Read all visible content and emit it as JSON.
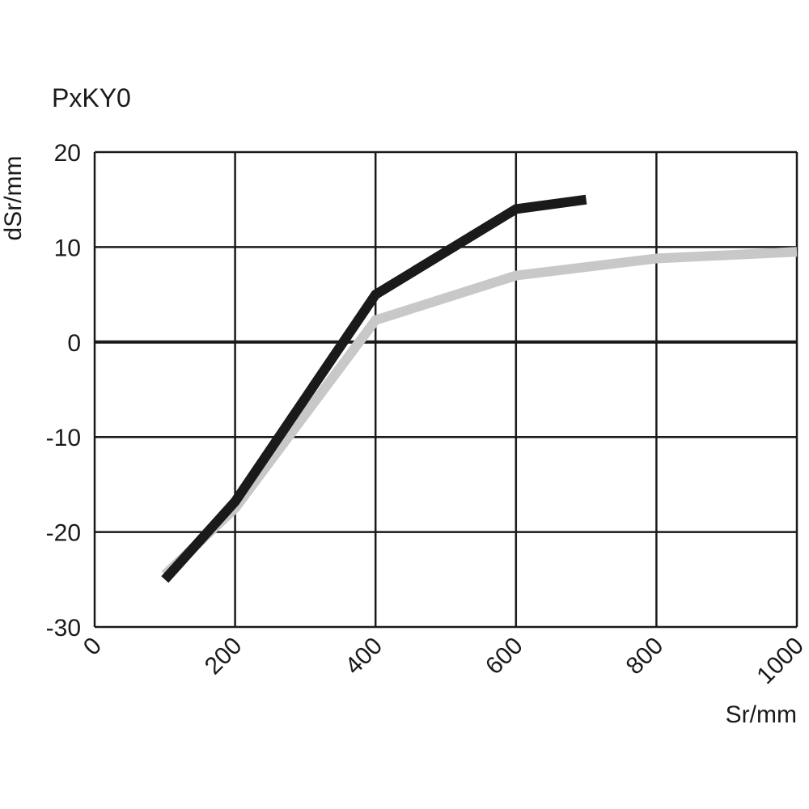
{
  "chart_data": {
    "type": "line",
    "title": "PxKY0",
    "xlabel": "Sr/mm",
    "ylabel": "dSr/mm",
    "xlim": [
      0,
      1000
    ],
    "ylim": [
      -30,
      20
    ],
    "x_ticks": [
      0,
      200,
      400,
      600,
      800,
      1000
    ],
    "y_ticks": [
      20,
      10,
      0,
      -10,
      -20,
      -30
    ],
    "x_tick_labels": [
      "0",
      "200",
      "400",
      "600",
      "800",
      "1000"
    ],
    "y_tick_labels": [
      "20",
      "10",
      "0",
      "-10",
      "-20",
      "-30"
    ],
    "grid": true,
    "series": [
      {
        "color": "#c8c8c8",
        "points": [
          [
            100,
            -24.5
          ],
          [
            200,
            -17.5
          ],
          [
            400,
            2.3
          ],
          [
            600,
            7.0
          ],
          [
            800,
            8.8
          ],
          [
            1000,
            9.5
          ]
        ]
      },
      {
        "color": "#1a1a1a",
        "points": [
          [
            100,
            -25.0
          ],
          [
            200,
            -16.8
          ],
          [
            400,
            5.0
          ],
          [
            500,
            9.5
          ],
          [
            600,
            14.0
          ],
          [
            700,
            15.0
          ]
        ]
      }
    ]
  }
}
